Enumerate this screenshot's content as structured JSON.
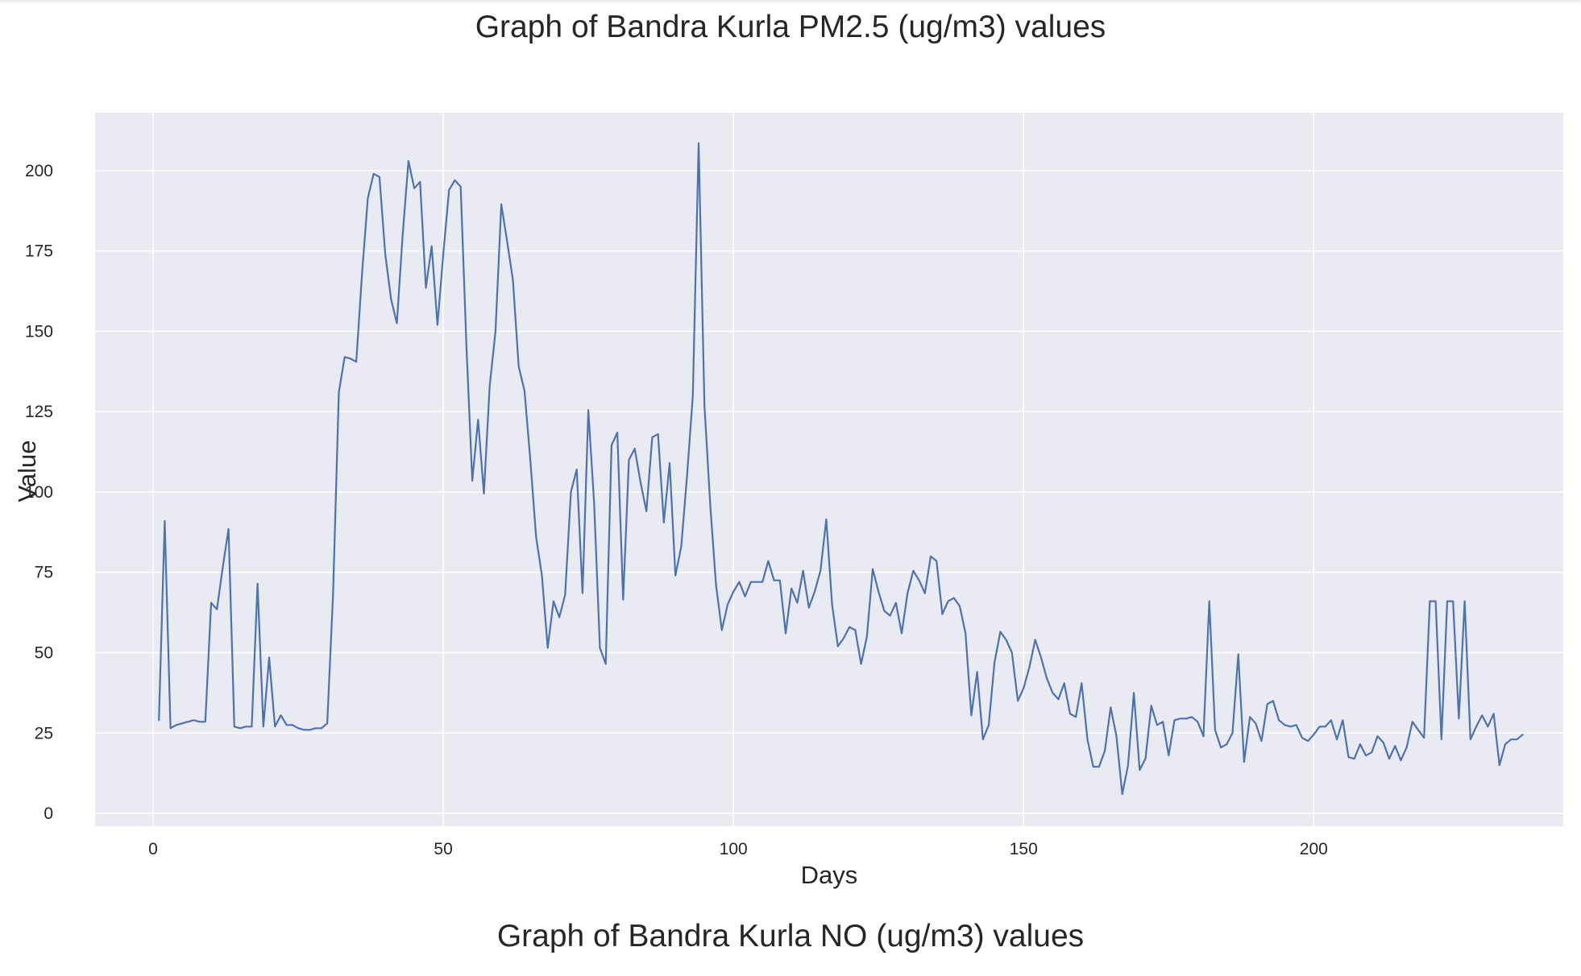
{
  "next_chart_title": "Graph of Bandra Kurla NO (ug/m3) values",
  "chart_data": {
    "type": "line",
    "title": "Graph of Bandra Kurla PM2.5 (ug/m3) values",
    "xlabel": "Days",
    "ylabel": "Value",
    "xlim": [
      -10,
      243
    ],
    "ylim": [
      -4,
      218
    ],
    "xticks": [
      0,
      50,
      100,
      150,
      200
    ],
    "yticks": [
      0,
      25,
      50,
      75,
      100,
      125,
      150,
      175,
      200
    ],
    "grid": true,
    "legend": "none",
    "colors": {
      "line": "#4c72b0",
      "plot_background": "#eaeaf2",
      "grid": "#ffffff"
    },
    "series": [
      {
        "x": [
          1,
          2,
          3,
          4,
          5,
          6,
          7,
          8,
          9,
          10,
          11,
          12,
          13,
          14,
          15,
          16,
          17,
          18,
          19,
          20,
          21,
          22,
          23,
          24,
          25,
          26,
          27,
          28,
          29,
          30,
          31,
          32,
          33,
          34,
          35,
          36,
          37,
          38,
          39,
          40,
          41,
          42,
          43,
          44,
          45,
          46,
          47,
          48,
          49,
          50,
          51,
          52,
          53,
          54,
          55,
          56,
          57,
          58,
          59,
          60,
          61,
          62,
          63,
          64,
          65,
          66,
          67,
          68,
          69,
          70,
          71,
          72,
          73,
          74,
          75,
          76,
          77,
          78,
          79,
          80,
          81,
          82,
          83,
          84,
          85,
          86,
          87,
          88,
          89,
          90,
          91,
          92,
          93,
          94,
          95,
          96,
          97,
          98,
          99,
          100,
          101,
          102,
          103,
          104,
          105,
          106,
          107,
          108,
          109,
          110,
          111,
          112,
          113,
          114,
          115,
          116,
          117,
          118,
          119,
          120,
          121,
          122,
          123,
          124,
          125,
          126,
          127,
          128,
          129,
          130,
          131,
          132,
          133,
          134,
          135,
          136,
          137,
          138,
          139,
          140,
          141,
          142,
          143,
          144,
          145,
          146,
          147,
          148,
          149,
          150,
          151,
          152,
          153,
          154,
          155,
          156,
          157,
          158,
          159,
          160,
          161,
          162,
          163,
          164,
          165,
          166,
          167,
          168,
          169,
          170,
          171,
          172,
          173,
          174,
          175,
          176,
          177,
          178,
          179,
          180,
          181,
          182,
          183,
          184,
          185,
          186,
          187,
          188,
          189,
          190,
          191,
          192,
          193,
          194,
          195,
          196,
          197,
          198,
          199,
          200,
          201,
          202,
          203,
          204,
          205,
          206,
          207,
          208,
          209,
          210,
          211,
          212,
          213,
          214,
          215,
          216,
          217,
          218,
          219,
          220,
          221,
          222,
          223,
          224,
          225,
          226,
          227,
          228,
          229,
          230,
          231,
          232,
          233,
          234,
          235,
          236
        ],
        "y": [
          29,
          91,
          26.5,
          27.5,
          28,
          28.5,
          29,
          28.5,
          28.5,
          65.5,
          63.5,
          76.5,
          88.5,
          27,
          26.5,
          27,
          27,
          71.5,
          27,
          48.5,
          27,
          30.5,
          27.5,
          27.5,
          26.5,
          26,
          26,
          26.5,
          26.5,
          28,
          68,
          131,
          142,
          141.5,
          140.5,
          168,
          191.5,
          199,
          198,
          174,
          160,
          152.5,
          180,
          203,
          194.5,
          196.5,
          163.5,
          176.5,
          152,
          174,
          194,
          197,
          195,
          145,
          103.5,
          122.5,
          99.5,
          133,
          150,
          189.5,
          178,
          166,
          139,
          131.5,
          110,
          86,
          74,
          51.5,
          66,
          61,
          68,
          100,
          107,
          68.5,
          125.5,
          96.5,
          51.5,
          46.5,
          114.5,
          118.5,
          66.5,
          110,
          113.5,
          103,
          94,
          117,
          118,
          90.5,
          109,
          74,
          83,
          105,
          130,
          208.5,
          127,
          96,
          71,
          57,
          65,
          69,
          72,
          67.5,
          72,
          72,
          72,
          78.5,
          72.5,
          72.5,
          56,
          70,
          65.5,
          75.5,
          64,
          69,
          75.5,
          91.5,
          65,
          52,
          54.5,
          58,
          57,
          46.5,
          55,
          76,
          69,
          63,
          61.5,
          65.5,
          56,
          68.5,
          75.5,
          72.5,
          68.5,
          80,
          78.5,
          62,
          66,
          67,
          64.5,
          56,
          30.5,
          44,
          23,
          27.5,
          47,
          56.5,
          54,
          50,
          35,
          39,
          45.5,
          54,
          48.5,
          42,
          37.5,
          35.5,
          40.5,
          31,
          30,
          40.5,
          23,
          14.5,
          14.5,
          19.5,
          33,
          24,
          6,
          15,
          37.5,
          13.5,
          17,
          33.5,
          27.5,
          28.5,
          18,
          29,
          29.5,
          29.5,
          30,
          28.5,
          24,
          66,
          26,
          20.5,
          21.5,
          25,
          49.5,
          16,
          30,
          28,
          22.5,
          34,
          35,
          29,
          27.5,
          27,
          27.5,
          23.5,
          22.5,
          24.5,
          27,
          27,
          29,
          23,
          29,
          17.5,
          17,
          21.5,
          18,
          19,
          24,
          22,
          17,
          21,
          16.5,
          20.5,
          28.5,
          26,
          23.5,
          66,
          66,
          23,
          66,
          66,
          29.5,
          66,
          23,
          27,
          30.5,
          27,
          31,
          15,
          21.5,
          23,
          23,
          24.5
        ]
      }
    ]
  }
}
